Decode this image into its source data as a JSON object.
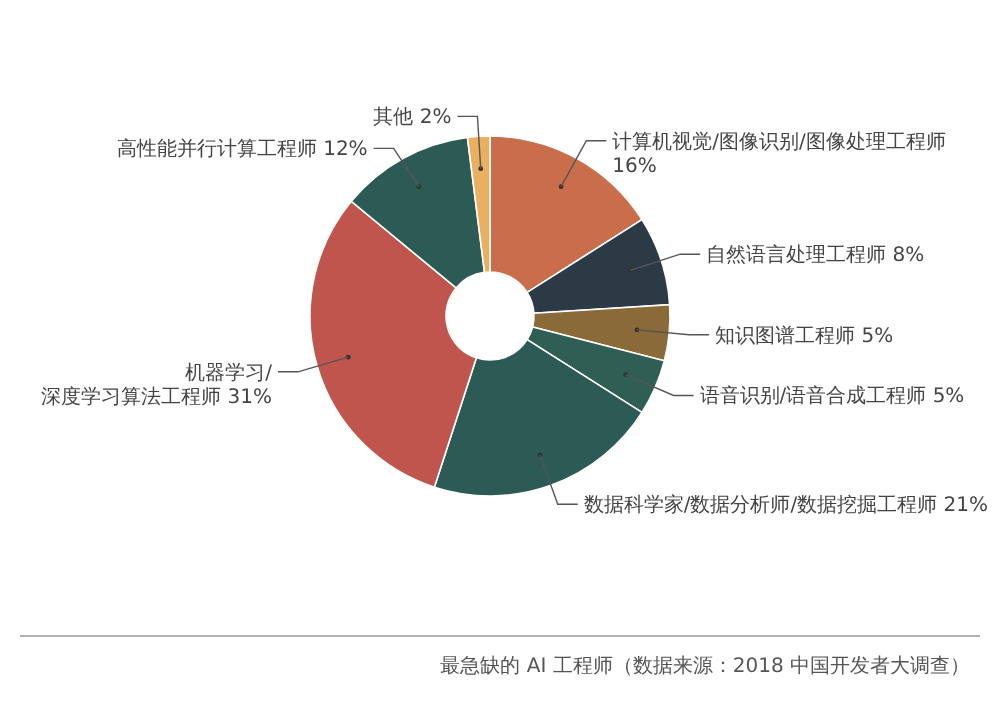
{
  "chart_data": {
    "type": "donut",
    "categories": [
      "计算机视觉/图像识别/图像处理工程师",
      "自然语言处理工程师",
      "知识图谱工程师",
      "语音识别/语音合成工程师",
      "数据科学家/数据分析师/数据挖掘工程师",
      "机器学习/深度学习算法工程师",
      "高性能并行计算工程师",
      "其他"
    ],
    "values": [
      16,
      8,
      5,
      5,
      21,
      31,
      12,
      2
    ],
    "value_labels": [
      "16%",
      "8%",
      "5%",
      "5%",
      "21%",
      "31%",
      "12%",
      "2%"
    ],
    "colors": [
      "#c96d4a",
      "#2b3a45",
      "#8a6a38",
      "#2f5e55",
      "#2c5a55",
      "#c0554e",
      "#2c5a55",
      "#e8b060"
    ],
    "annotations": [
      "最急缺的 AI 工程师（数据来源：2018 中国开发者大调查）"
    ]
  }
}
